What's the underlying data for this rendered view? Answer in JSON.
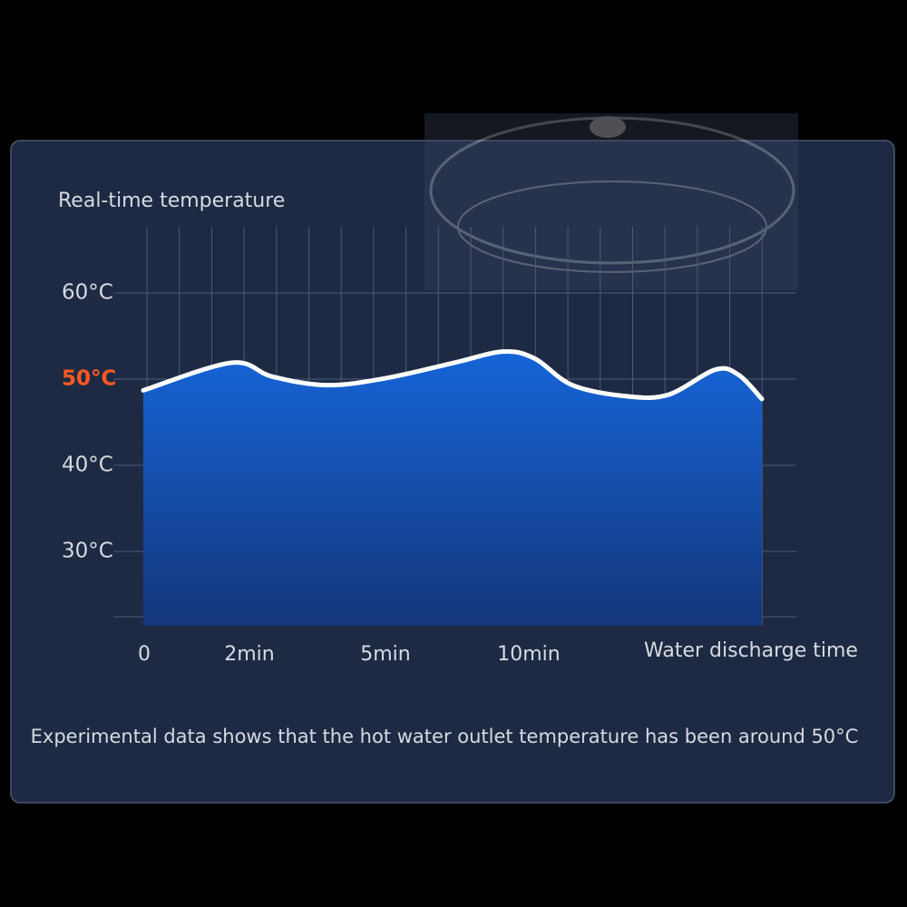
{
  "chart_data": {
    "type": "area",
    "title": "Real-time temperature",
    "x_label": "Water discharge time",
    "footnote": "Experimental data shows that the hot water outlet temperature has been around 50°C",
    "x": [
      0,
      1.66,
      2.5,
      3.7,
      5,
      7.4,
      9.1,
      10.2,
      11.5,
      13.4,
      14.8,
      16.4,
      17.2,
      18
    ],
    "values": [
      48.7,
      51.9,
      50.3,
      49.3,
      50.1,
      51.9,
      53.2,
      52.4,
      49.3,
      48.0,
      48.2,
      51.1,
      50.5,
      47.7
    ],
    "xlim": [
      0,
      18
    ],
    "xticks": [
      0,
      {
        "value": 2,
        "label": "2min"
      },
      {
        "value": 5,
        "label": "5min"
      },
      {
        "value": 10,
        "label": "10min"
      }
    ],
    "ylim": [
      21,
      68
    ],
    "yticks": [
      {
        "value": 30,
        "label": "30°C"
      },
      {
        "value": 40,
        "label": "40°C"
      },
      {
        "value": 50,
        "label": "50°C"
      },
      {
        "value": 60,
        "label": "60°C"
      }
    ],
    "highlight_ytick": 50,
    "highlight_color": "#ff5a1f",
    "line_color": "#ffffff",
    "color": "#1560c8",
    "grid": true
  }
}
